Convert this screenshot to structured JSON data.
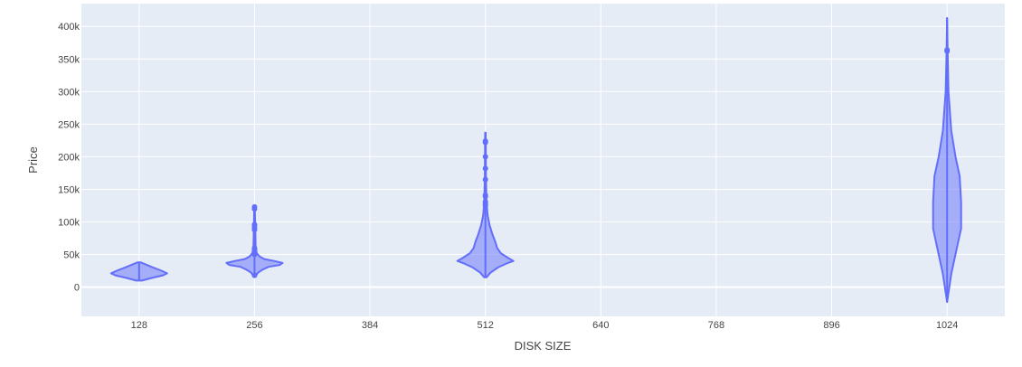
{
  "chart_data": {
    "type": "violin",
    "xlabel": "DISK SIZE",
    "ylabel": "Price",
    "x_ticks": [
      128,
      256,
      384,
      512,
      640,
      768,
      896,
      1024
    ],
    "y_ticks": [
      0,
      50000,
      100000,
      150000,
      200000,
      250000,
      300000,
      350000,
      400000
    ],
    "y_tick_labels": [
      "0",
      "50k",
      "100k",
      "150k",
      "200k",
      "250k",
      "300k",
      "350k",
      "400k"
    ],
    "xlim": [
      64,
      1088
    ],
    "ylim": [
      -45000,
      435000
    ],
    "grid": true,
    "colors": {
      "violin_line": "#636efa",
      "violin_fill": "#636efa",
      "plot_bg": "#e5ecf6",
      "grid": "#ffffff"
    },
    "violins": [
      {
        "x": 128,
        "min": 10000,
        "max": 38000,
        "profile": [
          [
            10000,
            0.1
          ],
          [
            14000,
            0.45
          ],
          [
            18000,
            0.85
          ],
          [
            21000,
            1.0
          ],
          [
            25000,
            0.8
          ],
          [
            30000,
            0.5
          ],
          [
            35000,
            0.22
          ],
          [
            38000,
            0.05
          ]
        ],
        "outliers": []
      },
      {
        "x": 256,
        "min": 17000,
        "max": 122000,
        "profile": [
          [
            17000,
            0.04
          ],
          [
            22000,
            0.12
          ],
          [
            27000,
            0.3
          ],
          [
            31000,
            0.5
          ],
          [
            34000,
            0.9
          ],
          [
            37000,
            1.0
          ],
          [
            40000,
            0.7
          ],
          [
            43000,
            0.35
          ],
          [
            47000,
            0.18
          ],
          [
            52000,
            0.08
          ],
          [
            60000,
            0.04
          ],
          [
            80000,
            0.03
          ],
          [
            100000,
            0.02
          ],
          [
            122000,
            0.01
          ]
        ],
        "outliers": [
          18000,
          50000,
          53000,
          56000,
          58000,
          60000,
          88000,
          91000,
          94000,
          96000,
          120000,
          123000
        ]
      },
      {
        "x": 512,
        "min": 15000,
        "max": 237000,
        "profile": [
          [
            15000,
            0.04
          ],
          [
            22000,
            0.18
          ],
          [
            30000,
            0.45
          ],
          [
            36000,
            0.75
          ],
          [
            40000,
            1.0
          ],
          [
            45000,
            0.8
          ],
          [
            52000,
            0.55
          ],
          [
            60000,
            0.42
          ],
          [
            70000,
            0.35
          ],
          [
            80000,
            0.26
          ],
          [
            95000,
            0.15
          ],
          [
            110000,
            0.08
          ],
          [
            130000,
            0.04
          ],
          [
            170000,
            0.02
          ],
          [
            237000,
            0.01
          ]
        ],
        "outliers": [
          125000,
          128000,
          131000,
          139000,
          141000,
          165000,
          182000,
          200000,
          222000,
          224000
        ]
      },
      {
        "x": 1024,
        "min": -23000,
        "max": 413000,
        "profile": [
          [
            -23000,
            0.0
          ],
          [
            20000,
            0.15
          ],
          [
            60000,
            0.35
          ],
          [
            90000,
            0.5
          ],
          [
            130000,
            0.5
          ],
          [
            170000,
            0.45
          ],
          [
            200000,
            0.3
          ],
          [
            240000,
            0.15
          ],
          [
            300000,
            0.05
          ],
          [
            360000,
            0.02
          ],
          [
            413000,
            0.0
          ]
        ],
        "outliers": [
          362000,
          364000
        ]
      }
    ]
  }
}
